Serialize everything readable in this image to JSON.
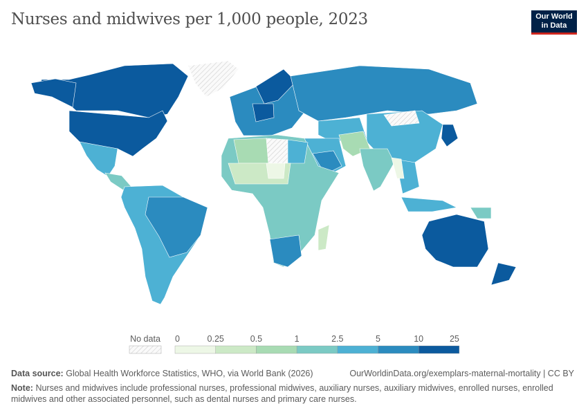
{
  "header": {
    "title": "Nurses and midwives per 1,000 people, 2023",
    "logo_line1": "Our World",
    "logo_line2": "in Data"
  },
  "chart_data": {
    "type": "choropleth",
    "title": "Nurses and midwives per 1,000 people, 2023",
    "legend": {
      "no_data_label": "No data",
      "bin_edges": [
        "0",
        "0.25",
        "0.5",
        "1",
        "2.5",
        "5",
        "10",
        "25"
      ],
      "colors": [
        "#edf7e6",
        "#cce9c6",
        "#a8dbb3",
        "#7bcac4",
        "#4db1d4",
        "#2b8bbf",
        "#0b5a9e"
      ]
    },
    "regions": [
      {
        "name": "Canada",
        "bin": "10–25"
      },
      {
        "name": "United States",
        "bin": "10–25"
      },
      {
        "name": "Greenland",
        "bin": "No data"
      },
      {
        "name": "Mexico",
        "bin": "2.5–5"
      },
      {
        "name": "Central America",
        "bin": "1–2.5"
      },
      {
        "name": "South America",
        "bin": "2.5–5"
      },
      {
        "name": "Brazil",
        "bin": "5–10"
      },
      {
        "name": "Europe",
        "bin": "5–10"
      },
      {
        "name": "Nordic countries",
        "bin": "10–25"
      },
      {
        "name": "Germany",
        "bin": "10–25"
      },
      {
        "name": "Russia",
        "bin": "5–10"
      },
      {
        "name": "Central Asia",
        "bin": "2.5–5"
      },
      {
        "name": "China",
        "bin": "2.5–5"
      },
      {
        "name": "Mongolia",
        "bin": "No data"
      },
      {
        "name": "Japan",
        "bin": "10–25"
      },
      {
        "name": "Middle East",
        "bin": "2.5–5"
      },
      {
        "name": "Saudi Arabia",
        "bin": "5–10"
      },
      {
        "name": "Pakistan and Afghanistan",
        "bin": "0.5–1"
      },
      {
        "name": "India",
        "bin": "1–2.5"
      },
      {
        "name": "Southeast Asia",
        "bin": "2.5–5"
      },
      {
        "name": "Myanmar",
        "bin": "0–0.25"
      },
      {
        "name": "Indonesia",
        "bin": "2.5–5"
      },
      {
        "name": "Papua New Guinea",
        "bin": "1–2.5"
      },
      {
        "name": "Australia",
        "bin": "10–25"
      },
      {
        "name": "New Zealand",
        "bin": "10–25"
      },
      {
        "name": "Africa",
        "bin": "1–2.5"
      },
      {
        "name": "Algeria",
        "bin": "0.5–1"
      },
      {
        "name": "Libya",
        "bin": "No data"
      },
      {
        "name": "Egypt",
        "bin": "2.5–5"
      },
      {
        "name": "Sahel",
        "bin": "0.25–0.5"
      },
      {
        "name": "Niger",
        "bin": "0–0.25"
      },
      {
        "name": "Southern Africa",
        "bin": "5–10"
      },
      {
        "name": "Madagascar",
        "bin": "0.25–0.5"
      }
    ]
  },
  "footer": {
    "source_label": "Data source:",
    "source_text": "Global Health Workforce Statistics, WHO, via World Bank (2026)",
    "url": "OurWorldinData.org/exemplars-maternal-mortality | CC BY",
    "note_label": "Note:",
    "note_text": "Nurses and midwives include professional nurses, professional midwives, auxiliary nurses, auxiliary midwives, enrolled nurses, enrolled midwives and other associated personnel, such as dental nurses and primary care nurses."
  }
}
